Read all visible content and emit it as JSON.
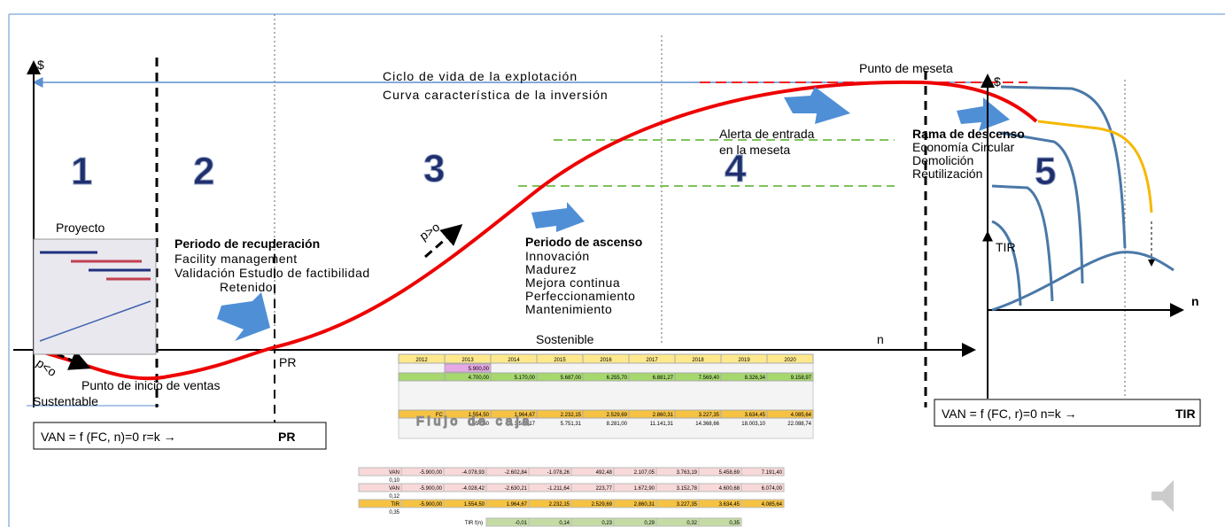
{
  "labels": {
    "dollar_left": "$",
    "dollar_right": "$",
    "ciclo": "Ciclo de vida de la explotación",
    "curva": "Curva característica de la inversión",
    "punto_meseta": "Punto de meseta",
    "alerta_1": "Alerta de entrada",
    "alerta_2": "en la meseta",
    "rama_title": "Rama de descenso",
    "rama_items": [
      "Economía Circular",
      "Demolición",
      "Reutilización"
    ],
    "phase_numbers": [
      "1",
      "2",
      "3",
      "4",
      "5"
    ],
    "proyecto": "Proyecto",
    "periodo_rec_title": "Periodo de recuperación",
    "periodo_rec_items": [
      "Facility management",
      "Validación Estudio de factibilidad",
      "Retenido"
    ],
    "p_gt_o": "p>o",
    "p_lt_o": "p<o",
    "periodo_asc_title": "Periodo de ascenso",
    "periodo_asc_items": [
      "Innovación",
      "Madurez",
      "Mejora continua",
      "Perfeccionamiento",
      "Mantenimiento"
    ],
    "sostenible": "Sostenible",
    "n_main": "n",
    "pr": "PR",
    "punto_inicio": "Punto de inicio de ventas",
    "sustentable": "Sustentable",
    "van_left": "VAN = f (FC, n)=0  r=k →",
    "van_left_bold": "PR",
    "van_right": "VAN = f (FC, r)=0  n=k →",
    "van_right_bold": "TIR",
    "tir": "TIR",
    "n_right": "n",
    "flujo": "Flujo de caja"
  },
  "table": {
    "years": [
      "2012",
      "2013",
      "2014",
      "2015",
      "2016",
      "2017",
      "2018",
      "2019",
      "2020"
    ],
    "rows": [
      [
        "",
        "5.900,00",
        "",
        "",
        "",
        "",
        "",
        "",
        ""
      ],
      [
        "",
        "4.700,00",
        "5.170,00",
        "5.687,00",
        "6.255,70",
        "6.881,27",
        "7.569,40",
        "8.326,34",
        "9.158,97"
      ],
      [
        "FC",
        "1.554,50",
        "1.964,67",
        "2.232,15",
        "2.529,69",
        "2.860,31",
        "3.227,35",
        "3.634,45",
        "4.085,64"
      ],
      [
        "",
        "1.554,50",
        "3.519,17",
        "5.751,31",
        "8.281,00",
        "11.141,31",
        "14.368,66",
        "18.003,10",
        "22.088,74"
      ]
    ],
    "van_rows": [
      [
        "VAN",
        "-5.900,00",
        "-4.078,93",
        "-2.602,84",
        "-1.078,26",
        "492,48",
        "2.107,05",
        "3.763,19",
        "5.458,69",
        "7.191,40"
      ],
      [
        "0,10"
      ],
      [
        "VAN",
        "-5.900,00",
        "-4.028,42",
        "-2.630,21",
        "-1.211,64",
        "223,77",
        "1.672,90",
        "3.152,78",
        "4.600,68",
        "6.074,00"
      ],
      [
        "0,12"
      ],
      [
        "TIR",
        "-5.900,00",
        "1.554,50",
        "1.964,67",
        "2.232,15",
        "2.529,69",
        "2.860,31",
        "3.227,35",
        "3.634,45",
        "4.085,64"
      ],
      [
        "0,35"
      ]
    ],
    "tir_label": "TIR f(n)",
    "tir_values": [
      "-0,01",
      "0,14",
      "0,23",
      "0,29",
      "0,32",
      "0,35"
    ]
  }
}
